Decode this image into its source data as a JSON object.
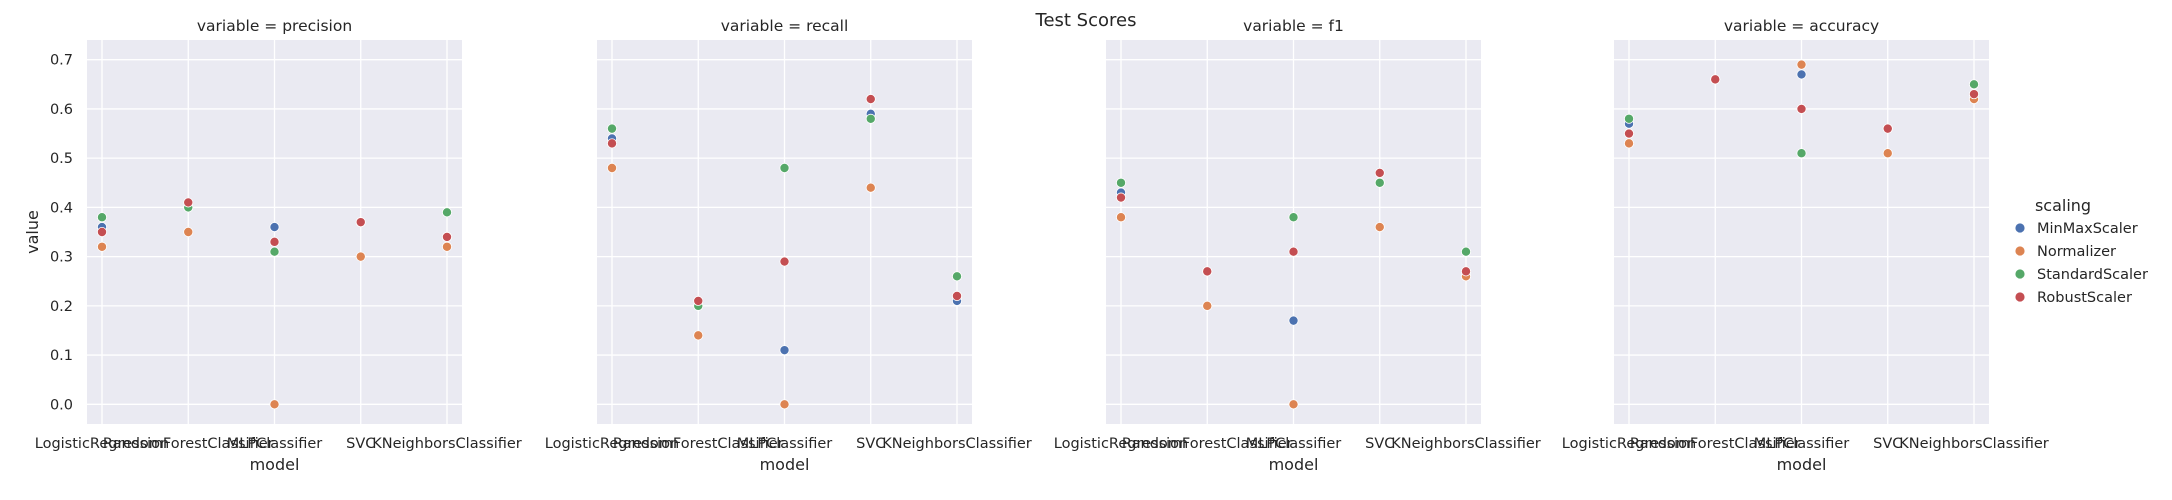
{
  "title": "Test Scores",
  "chart_data": {
    "type": "scatter",
    "suptitle": "Test Scores",
    "xlabel": "model",
    "ylabel": "value",
    "ylim": [
      -0.04,
      0.74
    ],
    "yticks": [
      "0.0",
      "0.1",
      "0.2",
      "0.3",
      "0.4",
      "0.5",
      "0.6",
      "0.7"
    ],
    "categories": [
      "LogisticRegression",
      "RandomForestClassifier",
      "MLPClassifier",
      "SVC",
      "KNeighborsClassifier"
    ],
    "grid": true,
    "legend": {
      "title": "scaling",
      "placement": "right",
      "entries": [
        {
          "name": "MinMaxScaler",
          "color": "#4c72b0"
        },
        {
          "name": "Normalizer",
          "color": "#dd8452"
        },
        {
          "name": "StandardScaler",
          "color": "#55a868"
        },
        {
          "name": "RobustScaler",
          "color": "#c44e52"
        }
      ]
    },
    "panels": [
      {
        "title": "variable = precision",
        "series": [
          {
            "name": "MinMaxScaler",
            "values": [
              0.36,
              0.4,
              0.36,
              0.37,
              0.34
            ]
          },
          {
            "name": "Normalizer",
            "values": [
              0.32,
              0.35,
              0.0,
              0.3,
              0.32
            ]
          },
          {
            "name": "StandardScaler",
            "values": [
              0.38,
              0.4,
              0.31,
              0.37,
              0.39
            ]
          },
          {
            "name": "RobustScaler",
            "values": [
              0.35,
              0.41,
              0.33,
              0.37,
              0.34
            ]
          }
        ]
      },
      {
        "title": "variable = recall",
        "series": [
          {
            "name": "MinMaxScaler",
            "values": [
              0.54,
              0.2,
              0.11,
              0.59,
              0.21
            ]
          },
          {
            "name": "Normalizer",
            "values": [
              0.48,
              0.14,
              0.0,
              0.44,
              0.22
            ]
          },
          {
            "name": "StandardScaler",
            "values": [
              0.56,
              0.2,
              0.48,
              0.58,
              0.26
            ]
          },
          {
            "name": "RobustScaler",
            "values": [
              0.53,
              0.21,
              0.29,
              0.62,
              0.22
            ]
          }
        ]
      },
      {
        "title": "variable = f1",
        "series": [
          {
            "name": "MinMaxScaler",
            "values": [
              0.43,
              0.27,
              0.17,
              0.45,
              0.27
            ]
          },
          {
            "name": "Normalizer",
            "values": [
              0.38,
              0.2,
              0.0,
              0.36,
              0.26
            ]
          },
          {
            "name": "StandardScaler",
            "values": [
              0.45,
              0.27,
              0.38,
              0.45,
              0.31
            ]
          },
          {
            "name": "RobustScaler",
            "values": [
              0.42,
              0.27,
              0.31,
              0.47,
              0.27
            ]
          }
        ]
      },
      {
        "title": "variable = accuracy",
        "series": [
          {
            "name": "MinMaxScaler",
            "values": [
              0.57,
              0.66,
              0.67,
              0.56,
              0.63
            ]
          },
          {
            "name": "Normalizer",
            "values": [
              0.53,
              0.66,
              0.69,
              0.51,
              0.62
            ]
          },
          {
            "name": "StandardScaler",
            "values": [
              0.58,
              0.66,
              0.51,
              0.56,
              0.65
            ]
          },
          {
            "name": "RobustScaler",
            "values": [
              0.55,
              0.66,
              0.6,
              0.56,
              0.63
            ]
          }
        ]
      }
    ]
  }
}
